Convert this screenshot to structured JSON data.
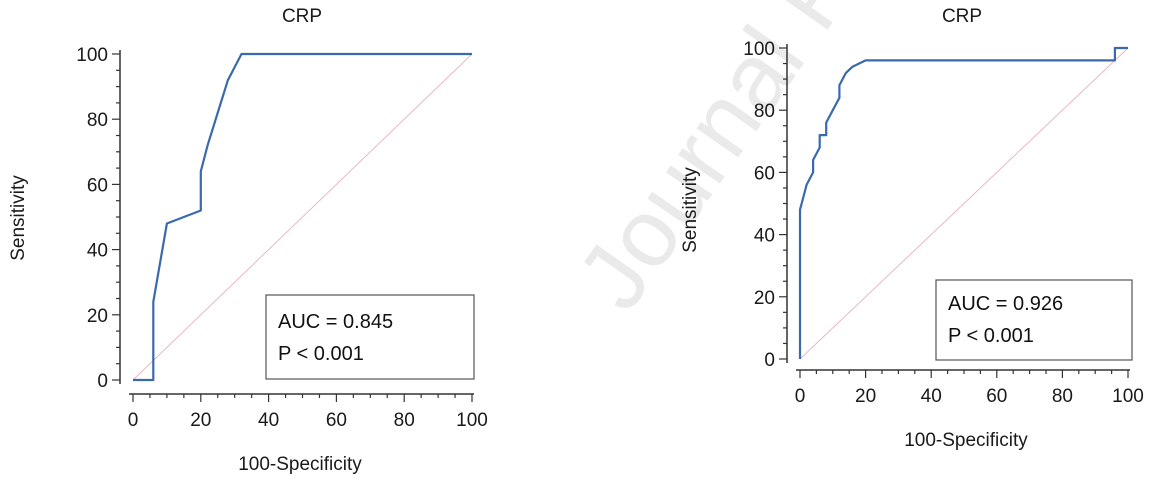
{
  "watermark": "Journal Pre-proof article in press",
  "chart_data": [
    {
      "type": "line",
      "title": "CRP",
      "xlabel": "100-Specificity",
      "ylabel": "Sensitivity",
      "xlim": [
        0,
        100
      ],
      "ylim": [
        0,
        100
      ],
      "xticks": [
        0,
        20,
        40,
        60,
        80,
        100
      ],
      "yticks": [
        0,
        20,
        40,
        60,
        80,
        100
      ],
      "grid": false,
      "colors": {
        "roc": "#3a6aad",
        "diagonal": "#e8b8c4",
        "axis": "#333333"
      },
      "annotation": {
        "auc_text": "AUC = 0.845",
        "p_text": "P < 0.001"
      },
      "series": [
        {
          "x": [
            0,
            6,
            6,
            10,
            20,
            20,
            22,
            28,
            32,
            100
          ],
          "y": [
            0,
            0,
            24,
            48,
            52,
            64,
            72,
            92,
            100,
            100
          ]
        }
      ],
      "reference_line": {
        "x": [
          0,
          100
        ],
        "y": [
          0,
          100
        ]
      }
    },
    {
      "type": "line",
      "title": "CRP",
      "xlabel": "100-Specificity",
      "ylabel": "Sensitivity",
      "xlim": [
        0,
        100
      ],
      "ylim": [
        0,
        100
      ],
      "xticks": [
        0,
        20,
        40,
        60,
        80,
        100
      ],
      "yticks": [
        0,
        20,
        40,
        60,
        80,
        100
      ],
      "grid": false,
      "colors": {
        "roc": "#3a6aad",
        "diagonal": "#e8b8c4",
        "axis": "#333333"
      },
      "annotation": {
        "auc_text": "AUC = 0.926",
        "p_text": "P < 0.001"
      },
      "series": [
        {
          "x": [
            0,
            0,
            1,
            2,
            3,
            4,
            4,
            5,
            6,
            6,
            8,
            8,
            10,
            11,
            12,
            12,
            13,
            14,
            16,
            20,
            96,
            96,
            100
          ],
          "y": [
            0,
            48,
            52,
            56,
            58,
            60,
            64,
            66,
            68,
            72,
            72,
            76,
            80,
            82,
            84,
            88,
            90,
            92,
            94,
            96,
            96,
            100,
            100
          ]
        }
      ],
      "reference_line": {
        "x": [
          0,
          100
        ],
        "y": [
          0,
          100
        ]
      }
    }
  ]
}
